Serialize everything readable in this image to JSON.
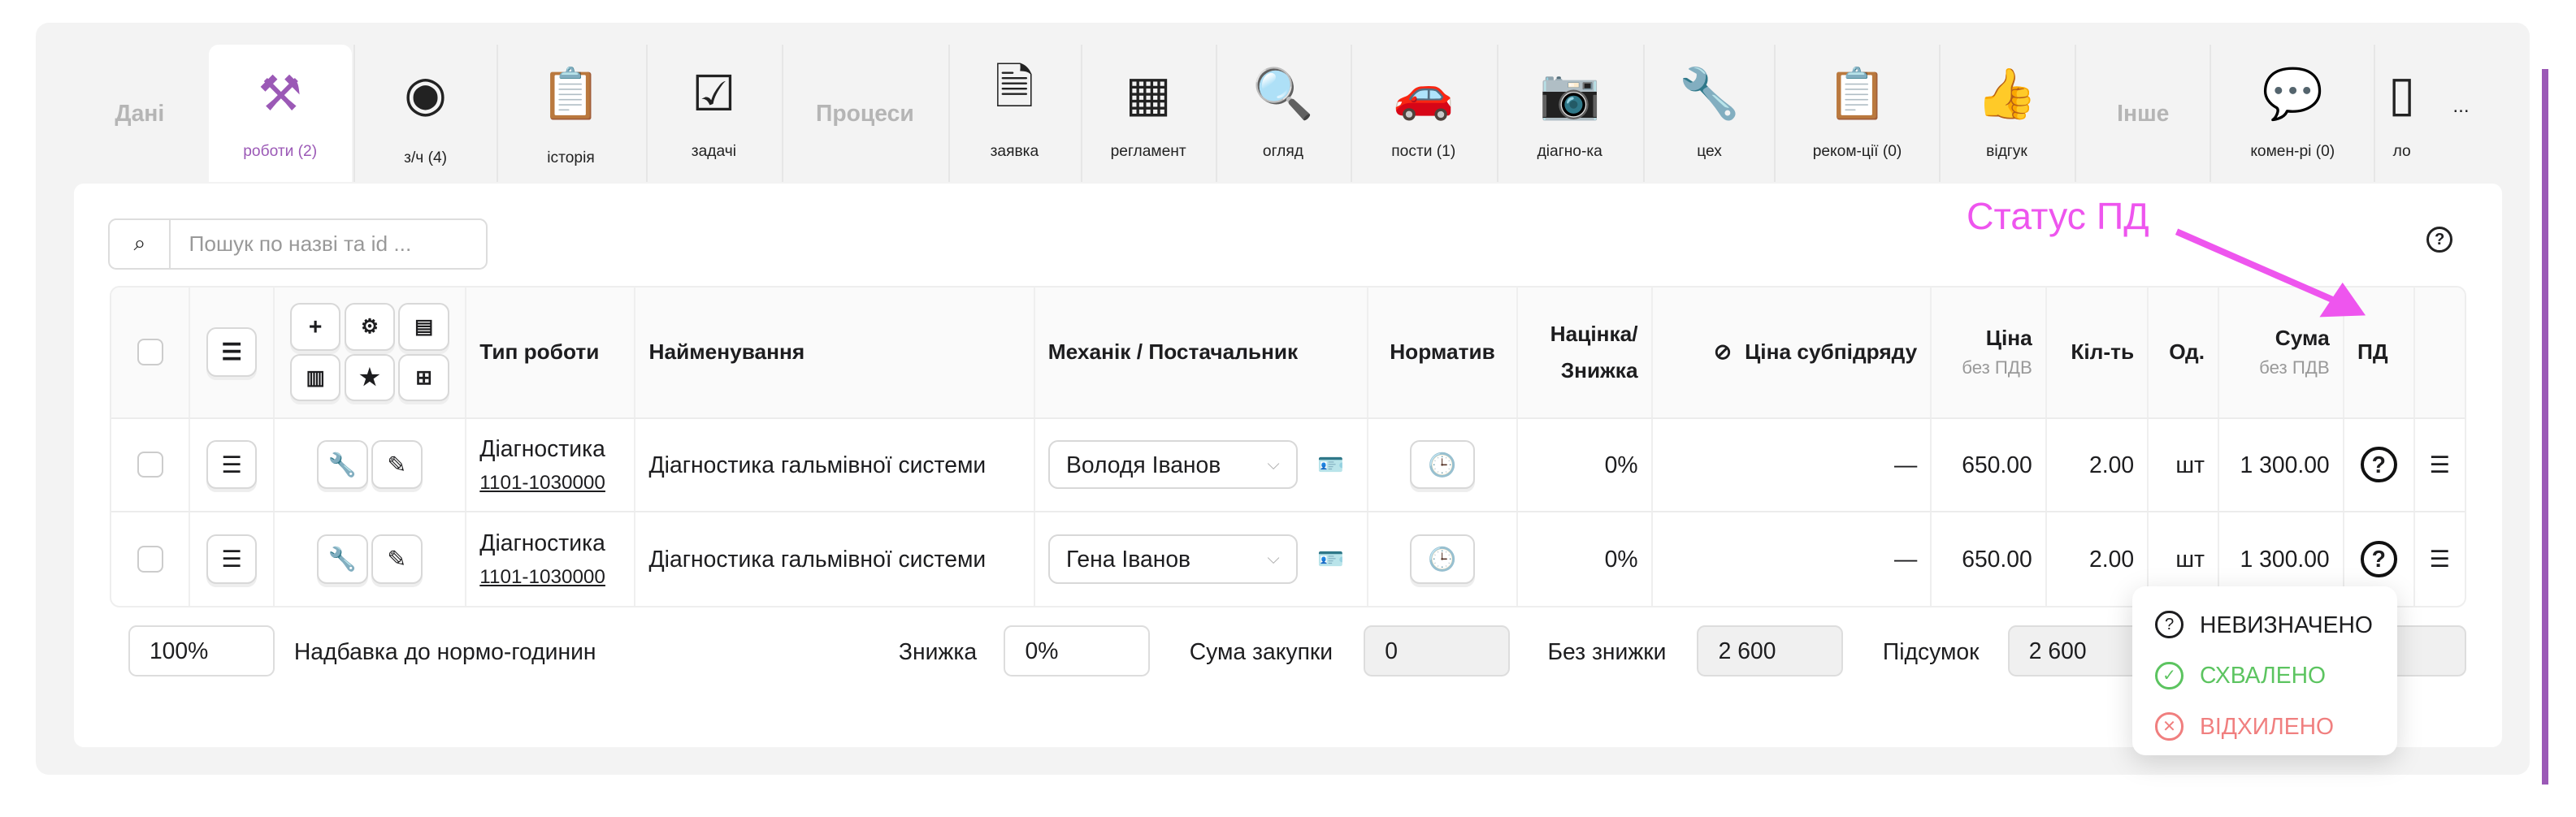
{
  "tabs": {
    "groups": {
      "data": "Дані",
      "processes": "Процеси",
      "other": "Інше"
    },
    "items": [
      {
        "label": "роботи (2)",
        "icon": "tools-icon",
        "active": true
      },
      {
        "label": "з/ч (4)",
        "icon": "brake-disc-icon"
      },
      {
        "label": "історія",
        "icon": "car-history-icon"
      },
      {
        "label": "задачі",
        "icon": "checklist-icon"
      },
      {
        "label": "заявка",
        "icon": "request-icon"
      },
      {
        "label": "регламент",
        "icon": "calendar-tools-icon"
      },
      {
        "label": "огляд",
        "icon": "inspection-icon"
      },
      {
        "label": "пости (1)",
        "icon": "car-lift-icon"
      },
      {
        "label": "діагно-ка",
        "icon": "diagnostics-icon"
      },
      {
        "label": "цех",
        "icon": "workshop-icon"
      },
      {
        "label": "реком-ції (0)",
        "icon": "recommendations-icon"
      },
      {
        "label": "відгук",
        "icon": "thumbs-up-icon"
      },
      {
        "label": "комен-рі (0)",
        "icon": "comments-icon"
      },
      {
        "label": "ло",
        "icon": "logs-icon"
      }
    ],
    "more": "..."
  },
  "search": {
    "placeholder": "Пошук по назві та id ..."
  },
  "annotation": {
    "text": "Статус ПД",
    "color": "#ee55ee"
  },
  "table": {
    "headers": {
      "type": "Тип роботи",
      "name": "Найменування",
      "mechanic": "Механік / Постачальник",
      "norm": "Норматив",
      "markup": "Націнка/ Знижка",
      "subprice": "Ціна субпідряду",
      "price": "Ціна",
      "price_sub": "без ПДВ",
      "qty": "Кіл-ть",
      "unit": "Од.",
      "sum": "Сума",
      "sum_sub": "без ПДВ",
      "pd": "ПД"
    },
    "rows": [
      {
        "type": "Діагностика",
        "code": "1101-1030000",
        "name": "Діагностика гальмівної системи",
        "mechanic": "Володя Іванов",
        "markup": "0%",
        "subprice": "—",
        "price": "650.00",
        "qty": "2.00",
        "unit": "шт",
        "sum": "1 300.00",
        "pd": "?"
      },
      {
        "type": "Діагностика",
        "code": "1101-1030000",
        "name": "Діагностика гальмівної системи",
        "mechanic": "Гена Іванов",
        "markup": "0%",
        "subprice": "—",
        "price": "650.00",
        "qty": "2.00",
        "unit": "шт",
        "sum": "1 300.00",
        "pd": "?"
      }
    ]
  },
  "footer": {
    "surcharge_value": "100%",
    "surcharge_label": "Надбавка до нормо-годинин",
    "discount_label": "Знижка",
    "discount_value": "0%",
    "purchase_label": "Сума закупки",
    "purchase_value": "0",
    "nodiscount_label": "Без знижки",
    "nodiscount_value": "2 600",
    "total_label": "Підсумок",
    "total_value": "2 600"
  },
  "status_menu": [
    {
      "label": "НЕВИЗНАЧЕНО",
      "color": "#1d1d1f",
      "icon": "question-circle-icon"
    },
    {
      "label": "СХВАЛЕНО",
      "color": "#5cc460",
      "icon": "check-circle-icon"
    },
    {
      "label": "ВІДХИЛЕНО",
      "color": "#f07f7f",
      "icon": "x-circle-icon"
    }
  ],
  "colors": {
    "accent": "#9b59b6"
  }
}
